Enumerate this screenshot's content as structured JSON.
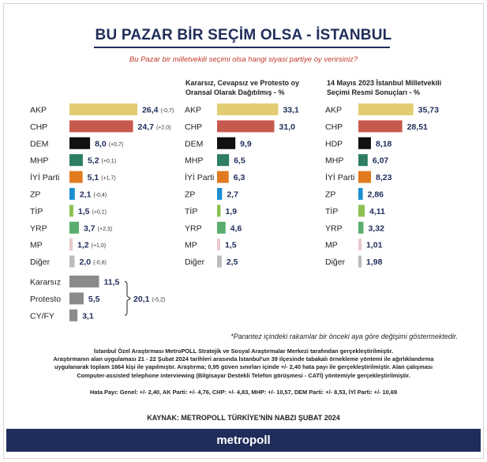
{
  "title": "BU PAZAR BİR SEÇİM OLSA - İSTANBUL",
  "subtitle": "Bu Pazar bir milletvekili seçimi olsa hangi siyasi partiye oy verirsiniz?",
  "chart_data": [
    {
      "type": "bar",
      "title": "",
      "categories": [
        "AKP",
        "CHP",
        "DEM",
        "MHP",
        "İYİ Parti",
        "ZP",
        "TİP",
        "YRP",
        "MP",
        "Diğer",
        "Kararsız",
        "Protesto",
        "CY/FY"
      ],
      "values": [
        26.4,
        24.7,
        8.0,
        5.2,
        5.1,
        2.1,
        1.5,
        3.7,
        1.2,
        2.0,
        11.5,
        5.5,
        3.1
      ],
      "value_labels": [
        "26,4",
        "24,7",
        "8,0",
        "5,2",
        "5,1",
        "2,1",
        "1,5",
        "3,7",
        "1,2",
        "2,0",
        "11,5",
        "5,5",
        "3,1"
      ],
      "changes": [
        "(-0,7)",
        "(+2,0)",
        "(+0,7)",
        "(+0,1)",
        "(+1,7)",
        "(-0,4)",
        "(+0,1)",
        "(+2,3)",
        "(+1,0)",
        "(-0,6)",
        "",
        "",
        ""
      ],
      "colors": [
        "#e2cd72",
        "#c75a4e",
        "#111111",
        "#2e7d64",
        "#e07a1f",
        "#1b8fd1",
        "#8cc050",
        "#5aad6e",
        "#e8c8cc",
        "#bcbcbc",
        "#8a8a8a",
        "#8a8a8a",
        "#8a8a8a"
      ],
      "bracket": {
        "value": "20,1",
        "change": "(-5,2)"
      }
    },
    {
      "type": "bar",
      "title": "Kararsız, Cevapsız ve Protesto oy Oransal Olarak Dağıtılmış - %",
      "categories": [
        "AKP",
        "CHP",
        "DEM",
        "MHP",
        "İYİ Parti",
        "ZP",
        "TİP",
        "YRP",
        "MP",
        "Diğer"
      ],
      "values": [
        33.1,
        31.0,
        9.9,
        6.5,
        6.3,
        2.7,
        1.9,
        4.6,
        1.5,
        2.5
      ],
      "value_labels": [
        "33,1",
        "31,0",
        "9,9",
        "6,5",
        "6,3",
        "2,7",
        "1,9",
        "4,6",
        "1,5",
        "2,5"
      ],
      "colors": [
        "#e2cd72",
        "#c75a4e",
        "#111111",
        "#2e7d64",
        "#e07a1f",
        "#1b8fd1",
        "#8cc050",
        "#5aad6e",
        "#e8c8cc",
        "#bcbcbc"
      ]
    },
    {
      "type": "bar",
      "title": "14 Mayıs 2023 İstanbul Milletvekili Seçimi Resmi Sonuçları - %",
      "categories": [
        "AKP",
        "CHP",
        "HDP",
        "MHP",
        "İYİ Parti",
        "ZP",
        "TİP",
        "YRP",
        "MP",
        "Diğer"
      ],
      "values": [
        35.73,
        28.51,
        8.18,
        6.07,
        8.23,
        2.86,
        4.11,
        3.32,
        1.01,
        1.98
      ],
      "value_labels": [
        "35,73",
        "28,51",
        "8,18",
        "6,07",
        "8,23",
        "2,86",
        "4,11",
        "3,32",
        "1,01",
        "1,98"
      ],
      "colors": [
        "#e2cd72",
        "#c75a4e",
        "#111111",
        "#2e7d64",
        "#e07a1f",
        "#1b8fd1",
        "#8cc050",
        "#5aad6e",
        "#e8c8cc",
        "#bcbcbc"
      ]
    }
  ],
  "note": "*Parantez içindeki rakamlar bir önceki aya göre değişimi göstermektedir.",
  "method_lines": [
    "İstanbul Özel Araştırması MetroPOLL Stratejik ve Sosyal Araştırmalar Merkezi tarafından gerçekleştirilmiştir.",
    "Araştırmanın alan uygulaması 21 - 22 Şubat 2024 tarihleri arasında İstanbul'un 39 ilçesinde tabakalı örnekleme yöntemi ile ağırlıklandırma",
    "uygulanarak toplam 1664 kişi ile yapılmıştır. Araştırma; 0,95 güven sınırları içinde +/- 2,40 hata payı ile gerçekleştirilmiştir. Alan çalışması",
    "Computer-assisted telephone interviewing (Bilgisayar Destekli Telefon görüşmesi - CATİ) yöntemiyle gerçekleştirilmiştir."
  ],
  "margin_of_error": "Hata Payı: Genel: +/- 2,40, AK Parti: +/- 4,76, CHP: +/- 4,83, MHP: +/- 10,57, DEM Parti: +/- 8,53, İYİ Parti: +/- 10,69",
  "source": "KAYNAK: METROPOLL TÜRKİYE'NİN NABZI ŞUBAT 2024",
  "brand": "metropoll"
}
